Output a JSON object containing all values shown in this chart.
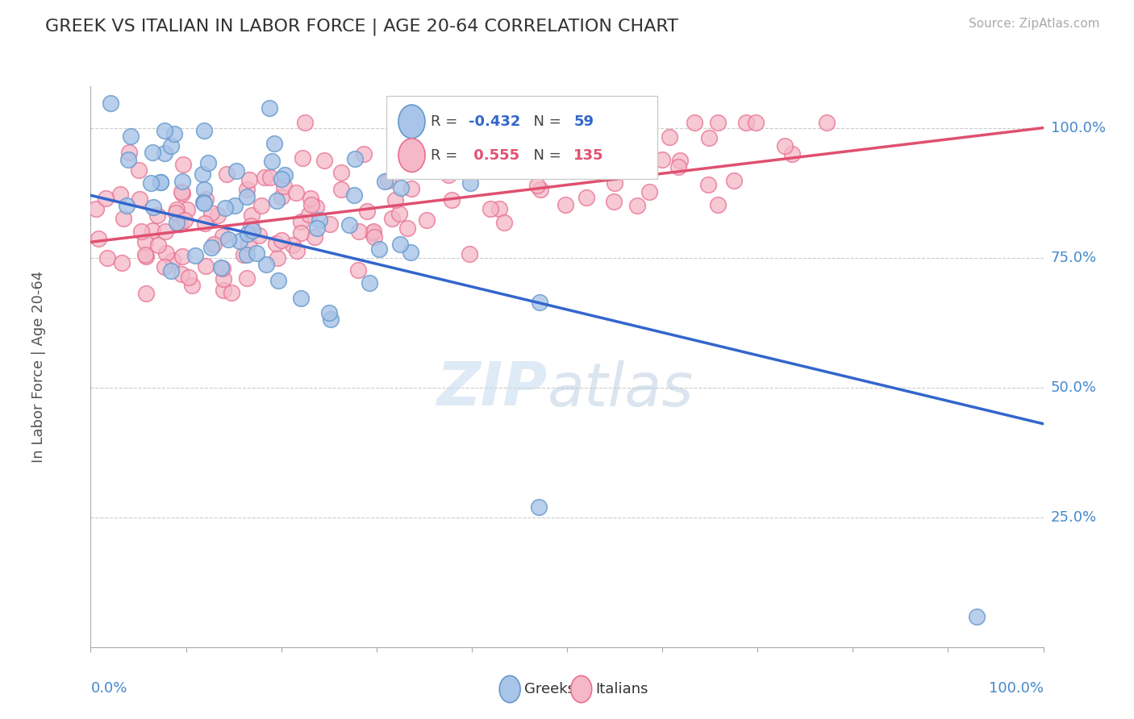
{
  "title": "GREEK VS ITALIAN IN LABOR FORCE | AGE 20-64 CORRELATION CHART",
  "source": "Source: ZipAtlas.com",
  "ylabel": "In Labor Force | Age 20-64",
  "yticks": [
    0.25,
    0.5,
    0.75,
    1.0
  ],
  "ytick_labels": [
    "25.0%",
    "50.0%",
    "75.0%",
    "100.0%"
  ],
  "xlim": [
    0.0,
    1.0
  ],
  "ylim": [
    0.0,
    1.08
  ],
  "greek_R": -0.432,
  "greek_N": 59,
  "italian_R": 0.555,
  "italian_N": 135,
  "greek_color_fill": "#a8c4e8",
  "greek_color_edge": "#6699cc",
  "greek_line_color": "#3366cc",
  "italian_color_fill": "#f4b8c8",
  "italian_color_edge": "#e87090",
  "italian_line_color": "#e05070",
  "legend_greek_label": "Greeks",
  "legend_italian_label": "Italians",
  "watermark_zip": "ZIP",
  "watermark_atlas": "atlas",
  "background_color": "#ffffff",
  "grid_color": "#cccccc",
  "title_color": "#333333",
  "axis_label_color": "#4488cc"
}
